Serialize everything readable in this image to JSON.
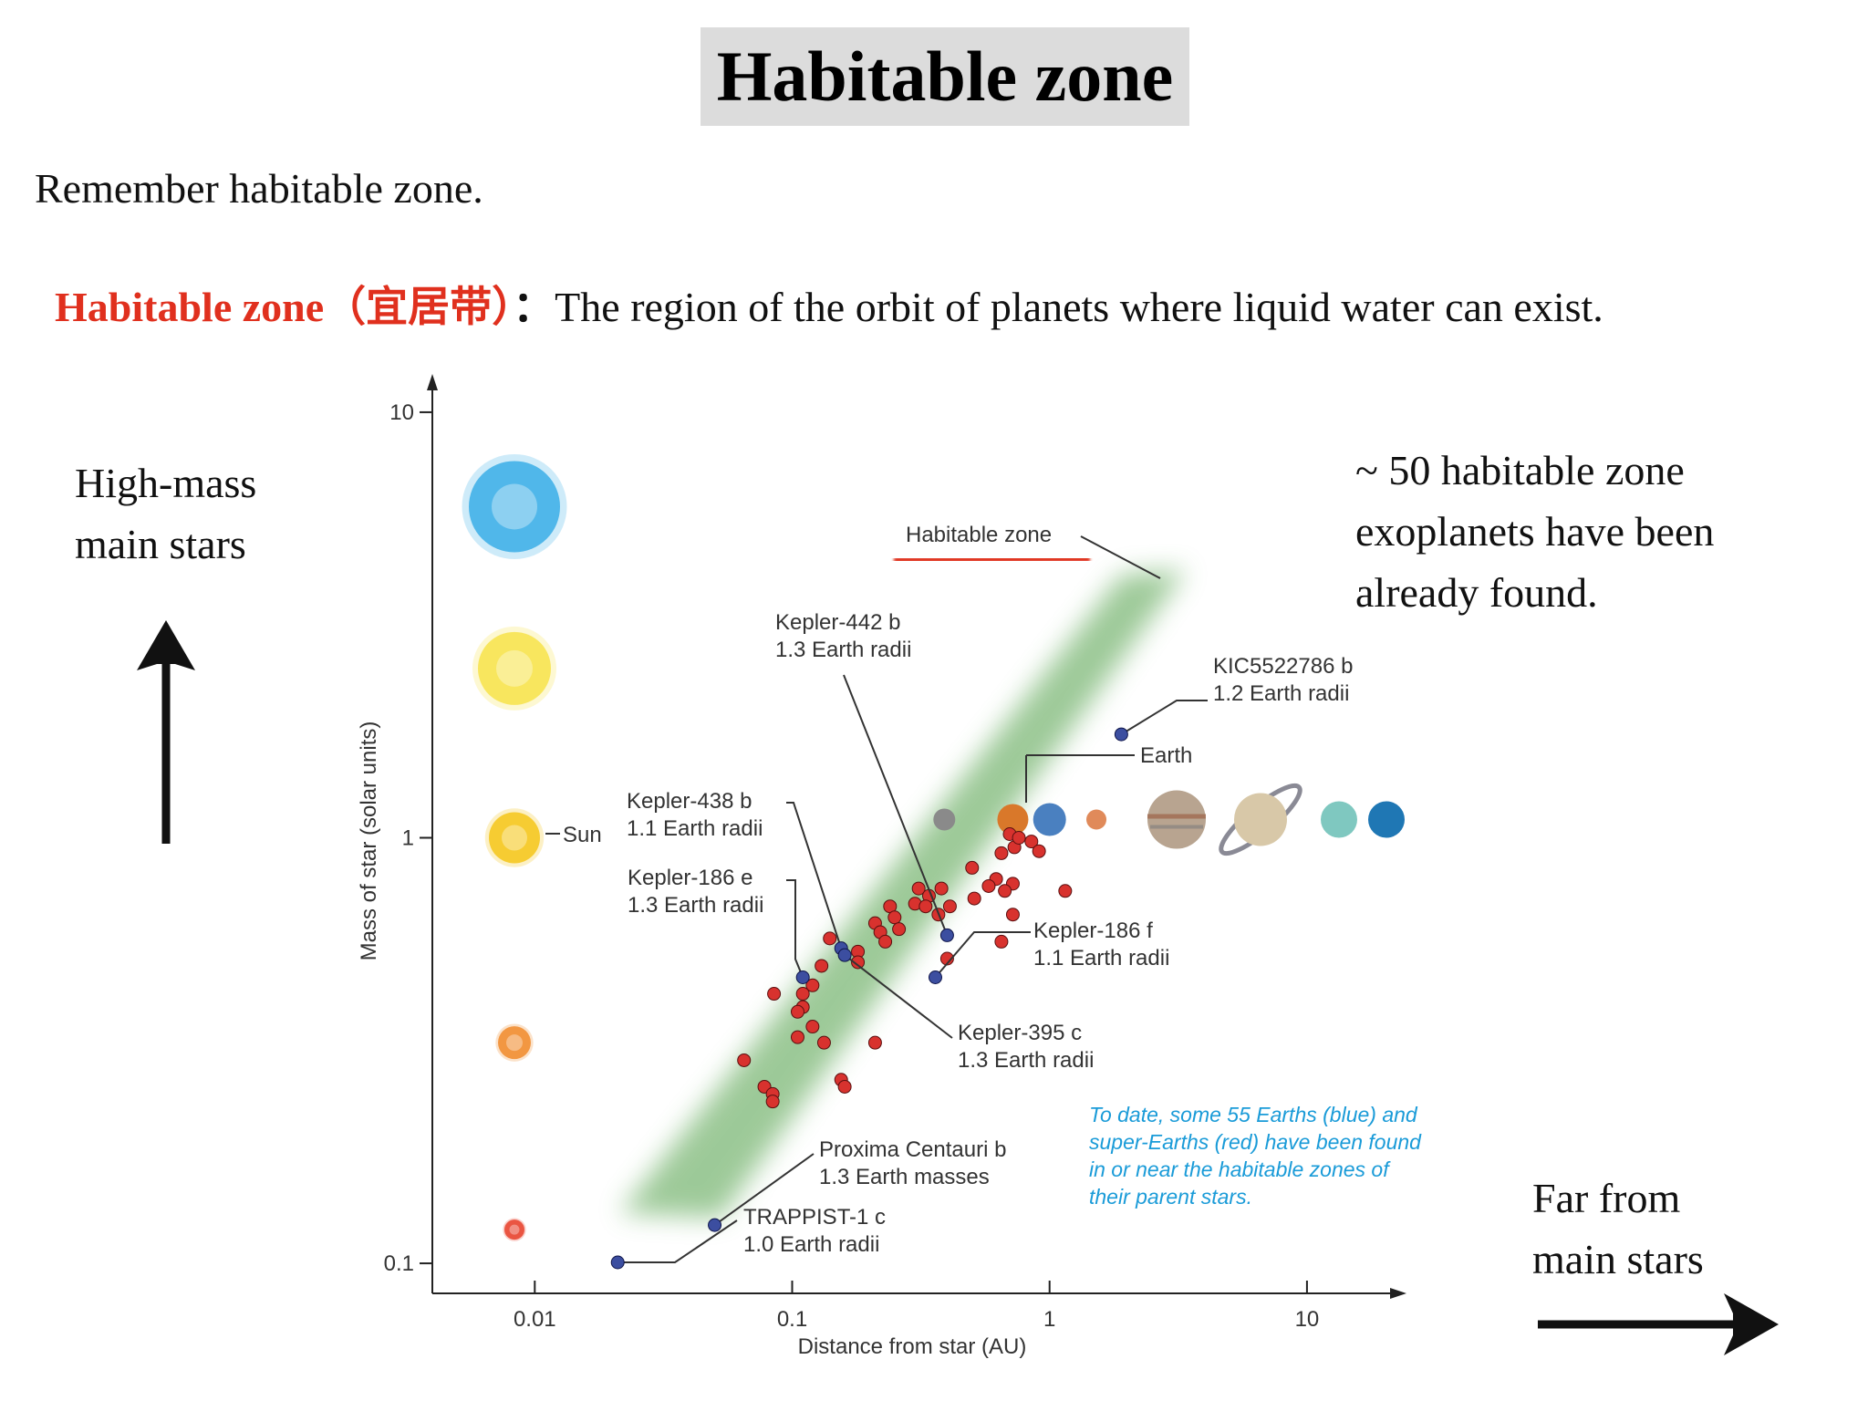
{
  "slide": {
    "title": "Habitable zone",
    "intro": "Remember habitable zone.",
    "definition_term": "Habitable zone（宜居带）",
    "definition_colon": "：",
    "definition_text": "The region of the orbit of planets where liquid water can exist.",
    "left_note": [
      "High-mass",
      "main stars"
    ],
    "right_note": [
      "~ 50 habitable zone",
      "exoplanets have been",
      "already found."
    ],
    "bottom_right_note": [
      "Far from",
      "main stars"
    ]
  },
  "chart_data": {
    "type": "scatter",
    "xlabel": "Distance from star (AU)",
    "ylabel": "Mass of star (solar units)",
    "x_scale": "log",
    "y_scale": "log",
    "xlim": [
      0.004,
      23
    ],
    "ylim": [
      0.085,
      12
    ],
    "x_ticks": [
      0.01,
      0.1,
      1,
      10
    ],
    "x_tick_labels": [
      "0.01",
      "0.1",
      "1",
      "10"
    ],
    "y_ticks": [
      0.1,
      1,
      10
    ],
    "y_tick_labels": [
      "0.1",
      "1",
      "10"
    ],
    "habitable_zone_label": "Habitable zone",
    "sun_label": "Sun",
    "earth_label": "Earth",
    "note": [
      "To date, some 55 Earths (blue) and",
      "super-Earths (red) have been found",
      "in or near the habitable zones of",
      "their parent stars."
    ],
    "stars": [
      {
        "mass": 6.0,
        "color": "#3aaee8"
      },
      {
        "mass": 2.5,
        "color": "#f7e34a"
      },
      {
        "mass": 1.0,
        "color": "#f5c518"
      },
      {
        "mass": 0.33,
        "color": "#f08a2a"
      },
      {
        "mass": 0.12,
        "color": "#e8402a"
      }
    ],
    "labeled_planets": [
      {
        "name": "Kepler-442 b",
        "detail": "1.3 Earth radii",
        "x": 0.4,
        "y": 0.59
      },
      {
        "name": "KIC5522786 b",
        "detail": "1.2 Earth radii",
        "x": 1.9,
        "y": 1.75
      },
      {
        "name": "Kepler-438 b",
        "detail": "1.1 Earth radii",
        "x": 0.155,
        "y": 0.55
      },
      {
        "name": "Kepler-186 e",
        "detail": "1.3 Earth radii",
        "x": 0.11,
        "y": 0.47
      },
      {
        "name": "Kepler-186 f",
        "detail": "1.1 Earth radii",
        "x": 0.36,
        "y": 0.47
      },
      {
        "name": "Kepler-395 c",
        "detail": "1.3 Earth radii",
        "x": 0.16,
        "y": 0.53
      },
      {
        "name": "Proxima Centauri b",
        "detail": "1.3 Earth masses",
        "x": 0.05,
        "y": 0.123
      },
      {
        "name": "TRAPPIST-1 c",
        "detail": "1.0 Earth radii",
        "x": 0.021,
        "y": 0.089
      }
    ],
    "red_points": [
      [
        0.7,
        1.02
      ],
      [
        0.73,
        0.95
      ],
      [
        0.76,
        1.0
      ],
      [
        0.85,
        0.98
      ],
      [
        0.91,
        0.93
      ],
      [
        0.65,
        0.92
      ],
      [
        0.5,
        0.85
      ],
      [
        0.62,
        0.8
      ],
      [
        0.58,
        0.77
      ],
      [
        0.72,
        0.78
      ],
      [
        0.67,
        0.75
      ],
      [
        0.51,
        0.72
      ],
      [
        0.31,
        0.76
      ],
      [
        0.3,
        0.7
      ],
      [
        0.24,
        0.69
      ],
      [
        0.38,
        0.76
      ],
      [
        0.34,
        0.73
      ],
      [
        0.33,
        0.69
      ],
      [
        0.41,
        0.69
      ],
      [
        0.37,
        0.66
      ],
      [
        0.25,
        0.65
      ],
      [
        0.21,
        0.63
      ],
      [
        0.72,
        0.66
      ],
      [
        1.15,
        0.75
      ],
      [
        0.26,
        0.61
      ],
      [
        0.22,
        0.6
      ],
      [
        0.23,
        0.57
      ],
      [
        0.65,
        0.57
      ],
      [
        0.4,
        0.52
      ],
      [
        0.18,
        0.54
      ],
      [
        0.14,
        0.58
      ],
      [
        0.18,
        0.51
      ],
      [
        0.13,
        0.5
      ],
      [
        0.12,
        0.45
      ],
      [
        0.11,
        0.43
      ],
      [
        0.085,
        0.43
      ],
      [
        0.11,
        0.4
      ],
      [
        0.105,
        0.39
      ],
      [
        0.12,
        0.36
      ],
      [
        0.105,
        0.34
      ],
      [
        0.133,
        0.33
      ],
      [
        0.21,
        0.33
      ],
      [
        0.065,
        0.3
      ],
      [
        0.078,
        0.26
      ],
      [
        0.084,
        0.25
      ],
      [
        0.084,
        0.24
      ],
      [
        0.155,
        0.27
      ],
      [
        0.16,
        0.26
      ]
    ],
    "solar_system": [
      {
        "name": "Mercury",
        "x": 0.39,
        "color": "#8a8a8a"
      },
      {
        "name": "Venus",
        "x": 0.72,
        "color": "#d9782a"
      },
      {
        "name": "Earth",
        "x": 1.0,
        "color": "#4a80c0"
      },
      {
        "name": "Mars",
        "x": 1.52,
        "color": "#e08a5a"
      },
      {
        "name": "Jupiter",
        "x": 5.2,
        "color": "#b8a490"
      },
      {
        "name": "Saturn",
        "x": 9.5,
        "color": "#d8c8a8"
      },
      {
        "name": "Uranus",
        "x": 19.2,
        "color": "#7fc8c0"
      },
      {
        "name": "Neptune",
        "x": 30.0,
        "color": "#1f77b4"
      }
    ]
  }
}
